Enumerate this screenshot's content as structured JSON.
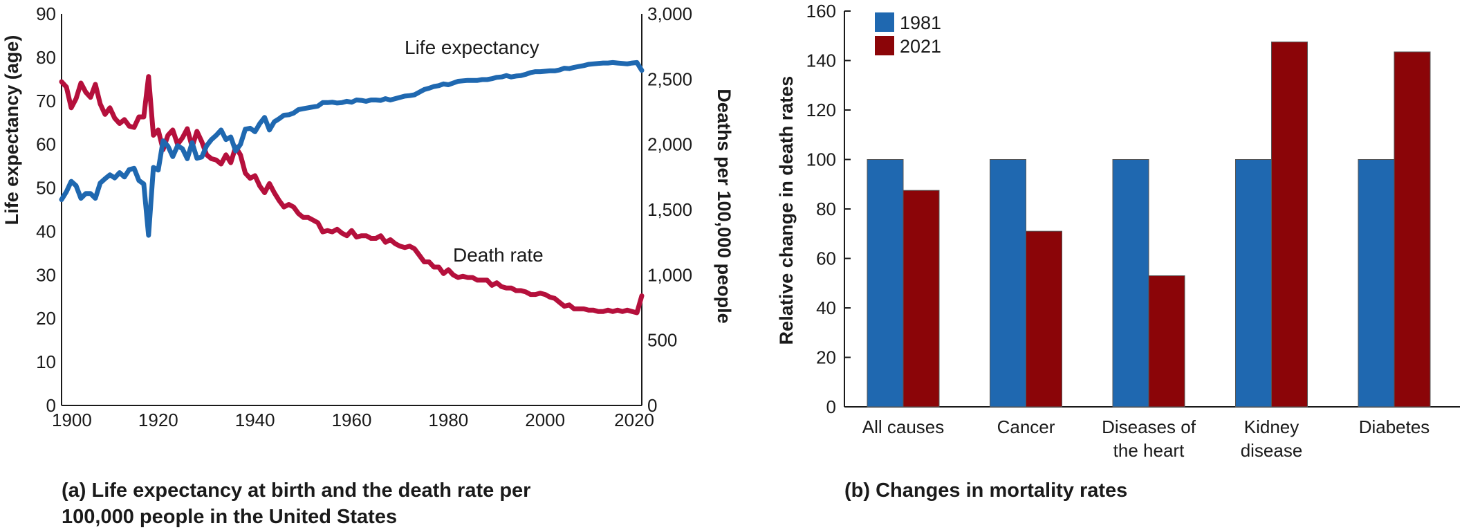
{
  "colors": {
    "blue": "#1f68b0",
    "red": "#b5103c",
    "darkred": "#8b0508",
    "axis": "#1a1a1a"
  },
  "captions": {
    "a_line1": "(a) Life expectancy at birth and the death rate per",
    "a_line2": "100,000 people in the United States",
    "b": "(b) Changes in mortality rates"
  },
  "chart_data": [
    {
      "type": "line",
      "title": "(a) Life expectancy at birth and the death rate per 100,000 people in the United States",
      "xlabel": "",
      "ylabel": "Life expectancy (age)",
      "ylabel_right": "Deaths per 100,000 people",
      "xlim": [
        1900,
        2020
      ],
      "ylim": [
        0,
        90
      ],
      "ylim_right": [
        0,
        3000
      ],
      "xticks": [
        "1900",
        "1920",
        "1940",
        "1960",
        "1980",
        "2000",
        "2020"
      ],
      "yticks": [
        "0",
        "10",
        "20",
        "30",
        "40",
        "50",
        "60",
        "70",
        "80",
        "90"
      ],
      "yticks_right": [
        "0",
        "500",
        "1,000",
        "1,500",
        "2,000",
        "2,500",
        "3,000"
      ],
      "grid": false,
      "annotations": [
        "Life expectancy",
        "Death rate"
      ],
      "series": [
        {
          "name": "Life expectancy",
          "axis": "left",
          "color": "#1f68b0",
          "x": [
            1900,
            1901,
            1902,
            1903,
            1904,
            1905,
            1906,
            1907,
            1908,
            1909,
            1910,
            1911,
            1912,
            1913,
            1914,
            1915,
            1916,
            1917,
            1918,
            1919,
            1920,
            1921,
            1922,
            1923,
            1924,
            1925,
            1926,
            1927,
            1928,
            1929,
            1930,
            1931,
            1932,
            1933,
            1934,
            1935,
            1936,
            1937,
            1938,
            1939,
            1940,
            1941,
            1942,
            1943,
            1944,
            1945,
            1946,
            1947,
            1948,
            1949,
            1950,
            1951,
            1952,
            1953,
            1954,
            1955,
            1956,
            1957,
            1958,
            1959,
            1960,
            1961,
            1962,
            1963,
            1964,
            1965,
            1966,
            1967,
            1968,
            1969,
            1970,
            1971,
            1972,
            1973,
            1974,
            1975,
            1976,
            1977,
            1978,
            1979,
            1980,
            1981,
            1982,
            1983,
            1984,
            1985,
            1986,
            1987,
            1988,
            1989,
            1990,
            1991,
            1992,
            1993,
            1994,
            1995,
            1996,
            1997,
            1998,
            1999,
            2000,
            2001,
            2002,
            2003,
            2004,
            2005,
            2006,
            2007,
            2008,
            2009,
            2010,
            2011,
            2012,
            2013,
            2014,
            2015,
            2016,
            2017,
            2018,
            2019,
            2020
          ],
          "values": [
            47.3,
            49.1,
            51.5,
            50.5,
            47.6,
            48.7,
            48.7,
            47.6,
            51.1,
            52.1,
            53.0,
            52.3,
            53.5,
            52.5,
            54.2,
            54.5,
            51.7,
            50.9,
            39.1,
            54.7,
            54.1,
            60.8,
            59.6,
            57.2,
            59.7,
            59.0,
            56.7,
            60.4,
            56.8,
            57.1,
            59.7,
            61.1,
            62.1,
            63.3,
            61.1,
            61.7,
            58.5,
            60.0,
            63.5,
            63.7,
            62.9,
            64.8,
            66.2,
            63.3,
            65.2,
            65.9,
            66.7,
            66.8,
            67.2,
            68.0,
            68.2,
            68.4,
            68.6,
            68.8,
            69.6,
            69.6,
            69.7,
            69.5,
            69.6,
            69.9,
            69.7,
            70.2,
            70.1,
            69.9,
            70.2,
            70.2,
            70.1,
            70.5,
            70.2,
            70.5,
            70.8,
            71.1,
            71.2,
            71.4,
            72.0,
            72.6,
            72.9,
            73.3,
            73.5,
            73.9,
            73.7,
            74.1,
            74.5,
            74.6,
            74.7,
            74.7,
            74.7,
            74.9,
            74.9,
            75.1,
            75.4,
            75.5,
            75.8,
            75.5,
            75.7,
            75.8,
            76.1,
            76.5,
            76.7,
            76.7,
            76.8,
            76.9,
            76.9,
            77.1,
            77.5,
            77.4,
            77.7,
            77.9,
            78.1,
            78.4,
            78.5,
            78.6,
            78.7,
            78.7,
            78.8,
            78.7,
            78.6,
            78.5,
            78.7,
            78.8,
            77.0
          ]
        },
        {
          "name": "Death rate",
          "axis": "right",
          "color": "#b5103c",
          "x": [
            1900,
            1901,
            1902,
            1903,
            1904,
            1905,
            1906,
            1907,
            1908,
            1909,
            1910,
            1911,
            1912,
            1913,
            1914,
            1915,
            1916,
            1917,
            1918,
            1919,
            1920,
            1921,
            1922,
            1923,
            1924,
            1925,
            1926,
            1927,
            1928,
            1929,
            1930,
            1931,
            1932,
            1933,
            1934,
            1935,
            1936,
            1937,
            1938,
            1939,
            1940,
            1941,
            1942,
            1943,
            1944,
            1945,
            1946,
            1947,
            1948,
            1949,
            1950,
            1951,
            1952,
            1953,
            1954,
            1955,
            1956,
            1957,
            1958,
            1959,
            1960,
            1961,
            1962,
            1963,
            1964,
            1965,
            1966,
            1967,
            1968,
            1969,
            1970,
            1971,
            1972,
            1973,
            1974,
            1975,
            1976,
            1977,
            1978,
            1979,
            1980,
            1981,
            1982,
            1983,
            1984,
            1985,
            1986,
            1987,
            1988,
            1989,
            1990,
            1991,
            1992,
            1993,
            1994,
            1995,
            1996,
            1997,
            1998,
            1999,
            2000,
            2001,
            2002,
            2003,
            2004,
            2005,
            2006,
            2007,
            2008,
            2009,
            2010,
            2011,
            2012,
            2013,
            2014,
            2015,
            2016,
            2017,
            2018,
            2019,
            2020
          ],
          "values": [
            2480,
            2440,
            2280,
            2350,
            2470,
            2400,
            2360,
            2460,
            2310,
            2230,
            2280,
            2200,
            2160,
            2190,
            2140,
            2130,
            2210,
            2210,
            2520,
            2070,
            2110,
            1960,
            2070,
            2110,
            2000,
            2050,
            2120,
            1980,
            2100,
            2020,
            1920,
            1890,
            1880,
            1850,
            1920,
            1860,
            1980,
            1920,
            1780,
            1740,
            1760,
            1680,
            1630,
            1700,
            1630,
            1570,
            1520,
            1540,
            1520,
            1470,
            1440,
            1440,
            1420,
            1400,
            1330,
            1340,
            1330,
            1350,
            1320,
            1300,
            1340,
            1290,
            1300,
            1300,
            1280,
            1280,
            1300,
            1250,
            1270,
            1240,
            1220,
            1210,
            1220,
            1200,
            1150,
            1100,
            1100,
            1060,
            1060,
            1010,
            1040,
            1000,
            980,
            990,
            980,
            980,
            960,
            960,
            960,
            920,
            940,
            910,
            900,
            900,
            880,
            880,
            870,
            850,
            850,
            860,
            850,
            830,
            820,
            790,
            760,
            770,
            740,
            740,
            740,
            730,
            730,
            720,
            720,
            730,
            720,
            730,
            720,
            730,
            720,
            710,
            840
          ]
        }
      ]
    },
    {
      "type": "bar",
      "title": "(b) Changes in mortality rates",
      "xlabel": "",
      "ylabel": "Relative change in death rates",
      "ylim": [
        0,
        160
      ],
      "yticks": [
        "0",
        "20",
        "40",
        "60",
        "80",
        "100",
        "120",
        "140",
        "160"
      ],
      "grid": false,
      "legend_position": "top-left",
      "categories": [
        "All causes",
        "Cancer",
        "Diseases of the heart",
        "Kidney disease",
        "Diabetes"
      ],
      "category_lines": [
        [
          "All causes"
        ],
        [
          "Cancer"
        ],
        [
          "Diseases of",
          "the heart"
        ],
        [
          "Kidney",
          "disease"
        ],
        [
          "Diabetes"
        ]
      ],
      "series": [
        {
          "name": "1981",
          "color": "#1f68b0",
          "values": [
            100,
            100,
            100,
            100,
            100
          ]
        },
        {
          "name": "2021",
          "color": "#8b0508",
          "values": [
            87.5,
            71,
            53,
            147.5,
            143.5
          ]
        }
      ]
    }
  ]
}
